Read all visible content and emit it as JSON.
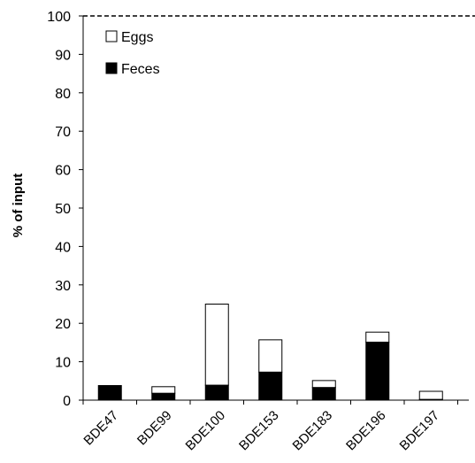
{
  "chart_data": {
    "type": "bar",
    "stacked": true,
    "categories": [
      "BDE47",
      "BDE99",
      "BDE100",
      "BDE153",
      "BDE183",
      "BDE196",
      "BDE197"
    ],
    "series": [
      {
        "name": "Feces",
        "values": [
          3.8,
          1.8,
          3.9,
          7.3,
          3.3,
          15.1,
          0.2
        ],
        "color": "#000000"
      },
      {
        "name": "Eggs",
        "values": [
          0.0,
          1.7,
          21.1,
          8.4,
          1.8,
          2.6,
          2.1
        ],
        "color": "#ffffff"
      }
    ],
    "reference_line": {
      "value": 100,
      "style": "dashed"
    },
    "title": "",
    "xlabel": "",
    "ylabel": "% of input",
    "ylim": [
      0,
      100
    ],
    "yticks": [
      0,
      10,
      20,
      30,
      40,
      50,
      60,
      70,
      80,
      90,
      100
    ],
    "legend_position": "top-left",
    "grid": false
  }
}
